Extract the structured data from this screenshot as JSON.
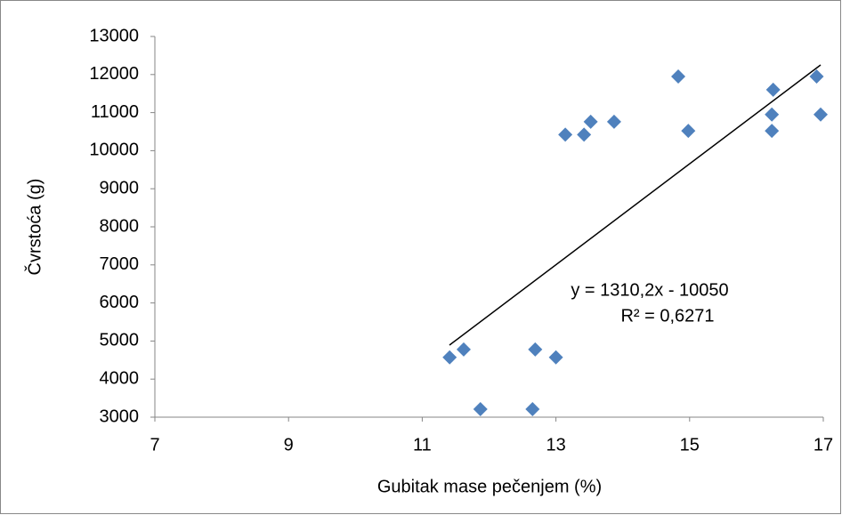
{
  "chart_data": {
    "type": "scatter",
    "x_label": "Gubitak mase pečenjem (%)",
    "y_label": "Čvrstoća (g)",
    "annotations": [
      "y = 1310,2x - 10050",
      "R² = 0,6271"
    ],
    "series": [
      {
        "name": "Čvrstoća",
        "color": "#4f81bd",
        "x": [
          11.41,
          11.62,
          11.87,
          12.69,
          12.65,
          13.0,
          13.14,
          13.42,
          13.52,
          13.87,
          14.83,
          14.98,
          16.25,
          16.23,
          16.23,
          16.9,
          16.96
        ],
        "values": [
          4570,
          4780,
          3210,
          4780,
          3210,
          4570,
          10420,
          10420,
          10760,
          10760,
          11950,
          10520,
          11600,
          10950,
          10520,
          11950,
          10950
        ]
      }
    ],
    "xlim": [
      7,
      17
    ],
    "xticks": [
      7,
      9,
      11,
      13,
      15,
      17
    ],
    "ylim": [
      3000,
      13000
    ],
    "yticks": [
      3000,
      4000,
      5000,
      6000,
      7000,
      8000,
      9000,
      10000,
      11000,
      12000,
      13000
    ],
    "grid": false
  }
}
